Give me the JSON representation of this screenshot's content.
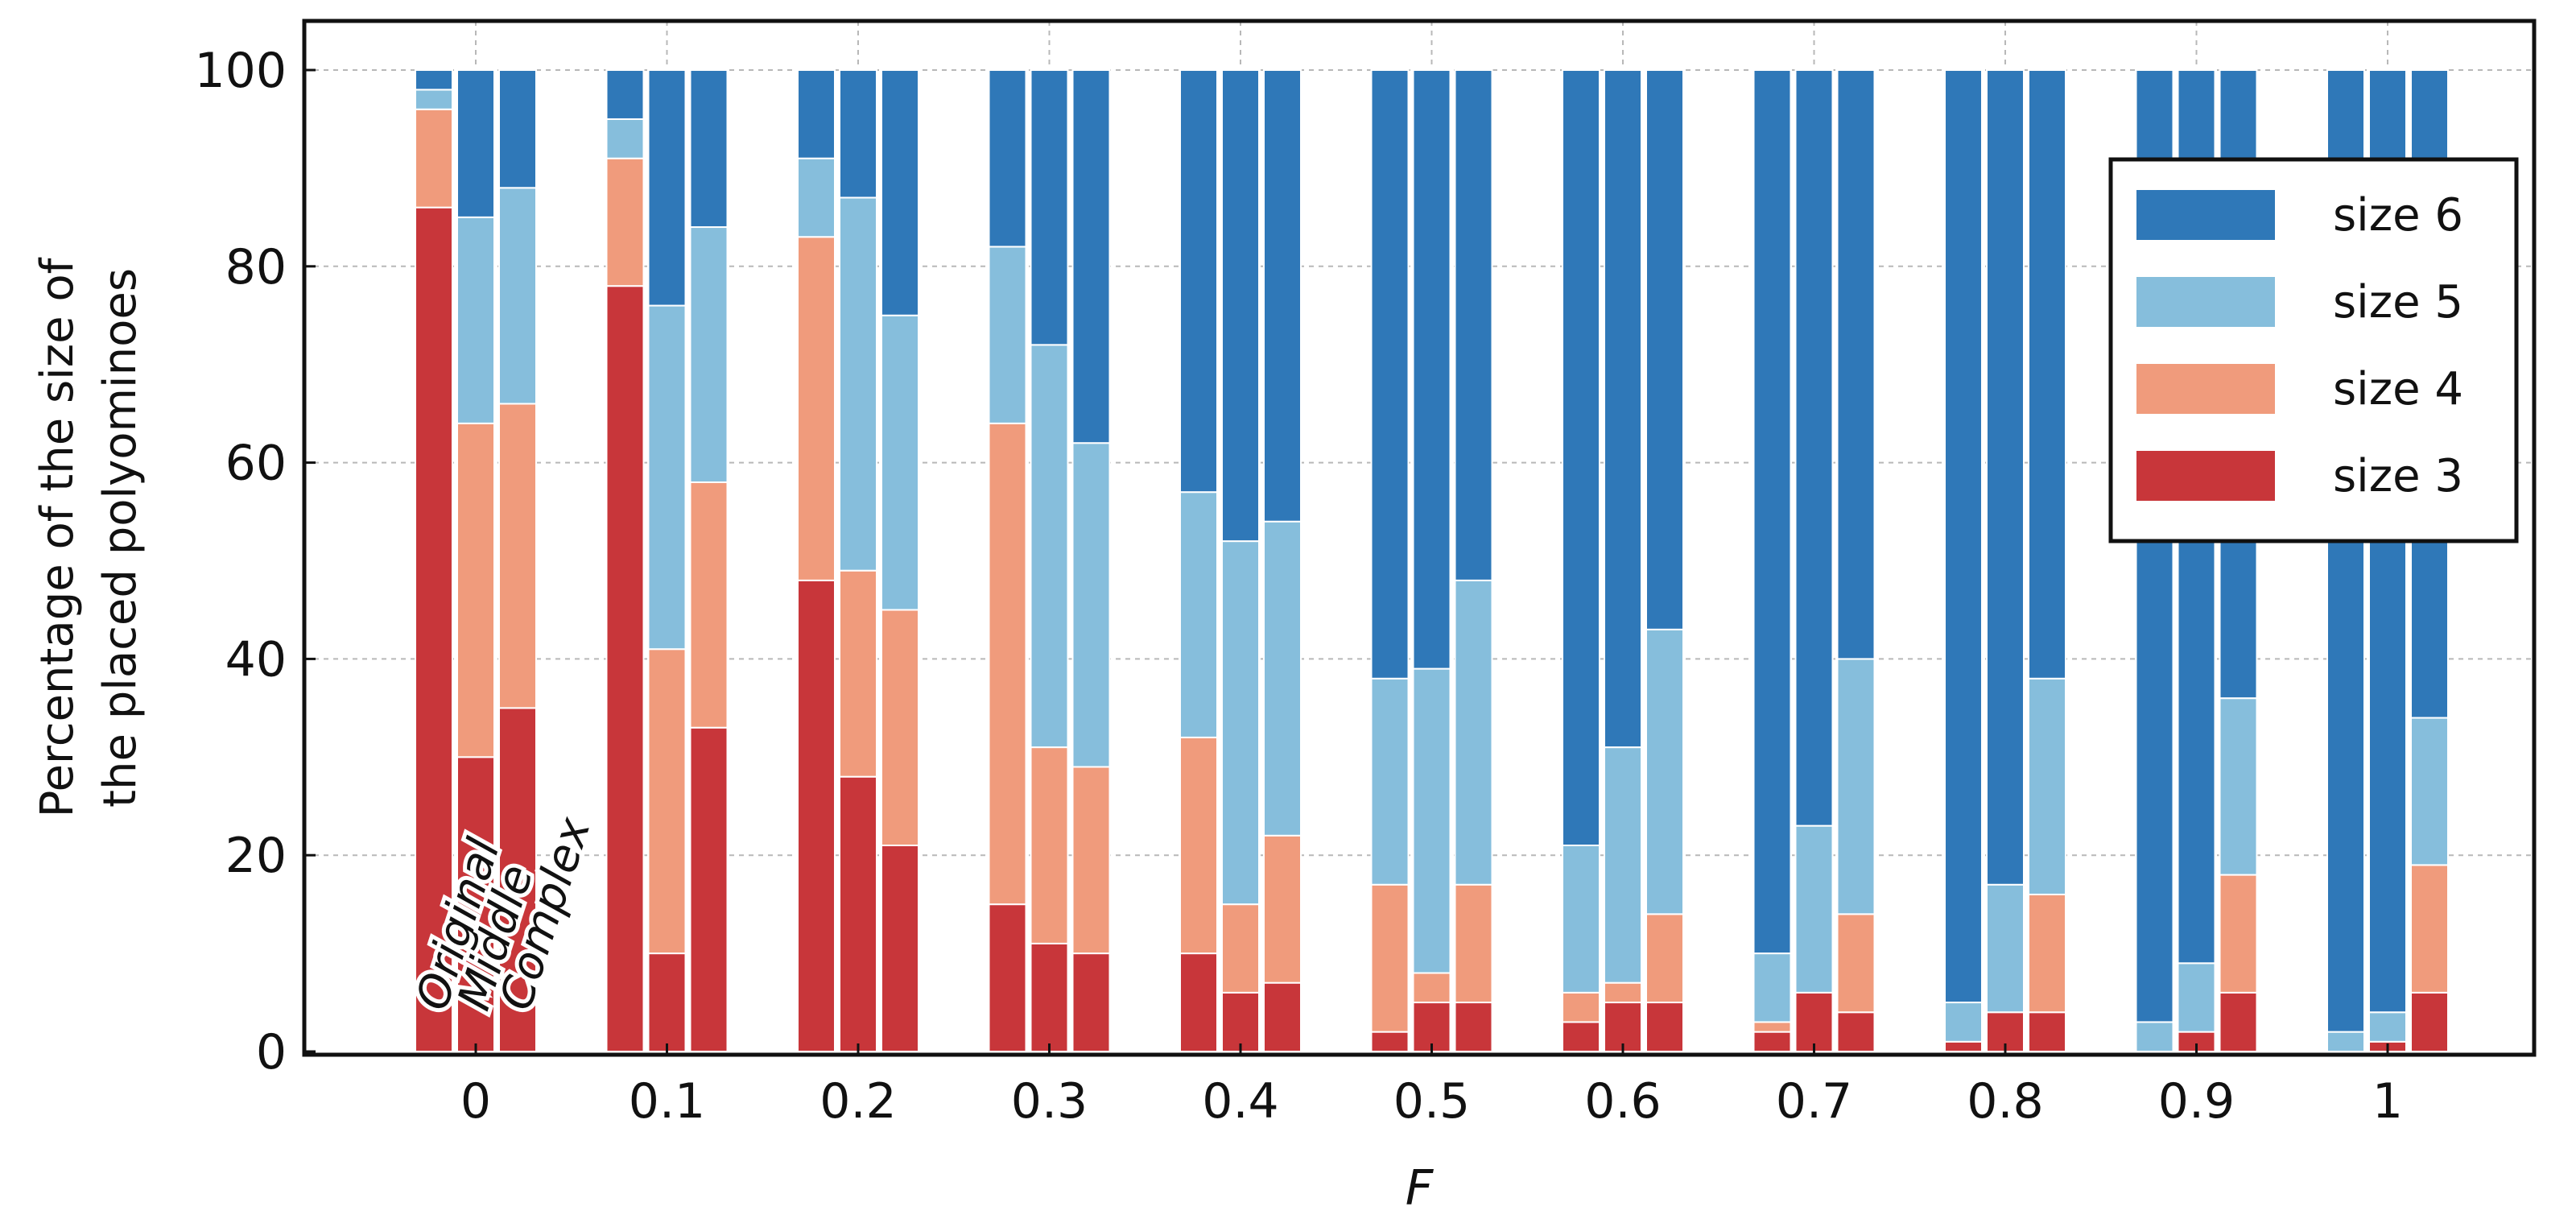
{
  "chart_data": {
    "type": "bar",
    "stacked": true,
    "ylabel_lines": [
      "Percentage of the size of",
      "the placed polyominoes"
    ],
    "xlabel": "F",
    "ylim": [
      0,
      100
    ],
    "yticks": [
      0,
      20,
      40,
      60,
      80,
      100
    ],
    "categories": [
      "0",
      "0.1",
      "0.2",
      "0.3",
      "0.4",
      "0.5",
      "0.6",
      "0.7",
      "0.8",
      "0.9",
      "1"
    ],
    "bar_names": [
      "Original",
      "Middle",
      "Complex"
    ],
    "legend_position": "top-right",
    "grid": true,
    "series": [
      {
        "name": "size 3",
        "color": "#c8363a",
        "values": [
          [
            86,
            30,
            35
          ],
          [
            78,
            10,
            33
          ],
          [
            48,
            28,
            21
          ],
          [
            15,
            11,
            10
          ],
          [
            10,
            6,
            7
          ],
          [
            2,
            5,
            5
          ],
          [
            3,
            5,
            5
          ],
          [
            2,
            6,
            4
          ],
          [
            1,
            4,
            4
          ],
          [
            0,
            2,
            6
          ],
          [
            0,
            1,
            6
          ]
        ]
      },
      {
        "name": "size 4",
        "color": "#f09b7c",
        "values": [
          [
            10,
            34,
            31
          ],
          [
            13,
            31,
            25
          ],
          [
            35,
            21,
            24
          ],
          [
            49,
            20,
            19
          ],
          [
            22,
            9,
            15
          ],
          [
            15,
            3,
            12
          ],
          [
            3,
            2,
            9
          ],
          [
            1,
            0,
            10
          ],
          [
            0,
            0,
            12
          ],
          [
            0,
            0,
            12
          ],
          [
            0,
            0,
            13
          ]
        ]
      },
      {
        "name": "size 5",
        "color": "#86bedc",
        "values": [
          [
            2,
            21,
            22
          ],
          [
            4,
            35,
            26
          ],
          [
            8,
            38,
            30
          ],
          [
            18,
            41,
            33
          ],
          [
            25,
            37,
            32
          ],
          [
            21,
            31,
            31
          ],
          [
            15,
            24,
            29
          ],
          [
            7,
            17,
            26
          ],
          [
            4,
            13,
            22
          ],
          [
            3,
            7,
            18
          ],
          [
            2,
            3,
            15
          ]
        ]
      },
      {
        "name": "size 6",
        "color": "#2f78b8",
        "values": [
          [
            2,
            15,
            12
          ],
          [
            5,
            24,
            16
          ],
          [
            9,
            13,
            25
          ],
          [
            18,
            28,
            38
          ],
          [
            43,
            48,
            46
          ],
          [
            62,
            61,
            52
          ],
          [
            79,
            69,
            57
          ],
          [
            90,
            77,
            60
          ],
          [
            95,
            83,
            62
          ],
          [
            97,
            91,
            64
          ],
          [
            98,
            96,
            66
          ]
        ]
      }
    ]
  }
}
